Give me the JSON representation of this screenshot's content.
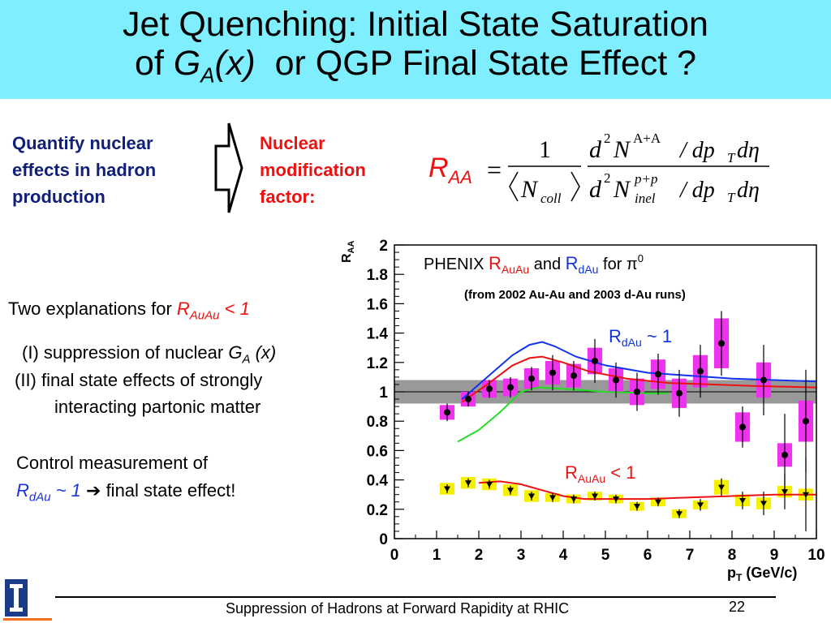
{
  "title": {
    "line1": "Jet Quenching: Initial State Saturation",
    "line2_pre": "of ",
    "line2_G": "G",
    "line2_sub": "A",
    "line2_x": "(x)",
    "line2_post": "or QGP Final State Effect ?"
  },
  "left": {
    "quantify": [
      "Quantify  nuclear",
      "effects in hadron",
      "production"
    ],
    "nmf": [
      "Nuclear",
      "modification",
      "factor:"
    ]
  },
  "formula": {
    "lhs": "R",
    "lhs_sub": "AA",
    "eq": "=",
    "one": "1",
    "ncoll_N": "N",
    "ncoll_sub": "coll",
    "num_d": "d",
    "num_2": "2",
    "num_N": "N",
    "num_sup": "A+A",
    "num_rest": "/ dp",
    "num_T": "T",
    "num_deta": "dη",
    "den_sup": "p+p",
    "den_sub": "inel"
  },
  "explanations": {
    "head_pre": "Two explanations for ",
    "head_R": "R",
    "head_sub": "AuAu",
    "head_post": " < 1",
    "item1_pre": "(I) suppression of nuclear ",
    "item1_G": "G",
    "item1_sub": "A",
    "item1_post": " (x)",
    "item2_l1": "(II) final state effects of strongly",
    "item2_l2": "interacting partonic matter"
  },
  "control": {
    "line1": "Control measurement of",
    "R": "R",
    "sub": "dAu",
    "post_blue": " ~ 1 ",
    "arrow": "➔",
    "post": " final state effect!"
  },
  "chart_data": {
    "type": "scatter",
    "title_pre": "PHENIX  ",
    "title_R1": "R",
    "title_R1_sub": "AuAu",
    "title_mid": "  and ",
    "title_R2": "R",
    "title_R2_sub": "dAu",
    "title_post": " for π",
    "title_sup": "0",
    "subtitle": "(from 2002 Au-Au and 2003 d-Au runs)",
    "ylabel_R": "R",
    "ylabel_sub": "AA",
    "xlabel_p": "p",
    "xlabel_sub": "T",
    "xlabel_post": " (GeV/c)",
    "xlim": [
      0,
      10
    ],
    "ylim": [
      0,
      2
    ],
    "xticks": [
      "0",
      "1",
      "2",
      "3",
      "4",
      "5",
      "6",
      "7",
      "8",
      "9",
      "10"
    ],
    "yticks": [
      "0",
      "0.2",
      "0.4",
      "0.6",
      "0.8",
      "1",
      "1.2",
      "1.4",
      "1.6",
      "1.8",
      "2"
    ],
    "reference_band": {
      "center": 1.0,
      "half_width": 0.08,
      "color": "#999999"
    },
    "annot_dAu_R": "R",
    "annot_dAu_sub": "dAu",
    "annot_dAu_post": "  ~ 1",
    "annot_AuAu_R": "R",
    "annot_AuAu_sub": "AuAu",
    "annot_AuAu_post": "  < 1",
    "series": [
      {
        "name": "dAu",
        "marker": "circle",
        "box_color": "#ee33ee",
        "points": [
          {
            "x": 1.25,
            "y": 0.86,
            "err": 0.06,
            "box": 0.05
          },
          {
            "x": 1.75,
            "y": 0.95,
            "err": 0.05,
            "box": 0.05
          },
          {
            "x": 2.25,
            "y": 1.02,
            "err": 0.06,
            "box": 0.06
          },
          {
            "x": 2.75,
            "y": 1.03,
            "err": 0.07,
            "box": 0.06
          },
          {
            "x": 3.25,
            "y": 1.09,
            "err": 0.08,
            "box": 0.07
          },
          {
            "x": 3.75,
            "y": 1.13,
            "err": 0.12,
            "box": 0.08
          },
          {
            "x": 4.25,
            "y": 1.11,
            "err": 0.1,
            "box": 0.08
          },
          {
            "x": 4.75,
            "y": 1.21,
            "err": 0.15,
            "box": 0.09
          },
          {
            "x": 5.25,
            "y": 1.08,
            "err": 0.12,
            "box": 0.08
          },
          {
            "x": 5.75,
            "y": 1.0,
            "err": 0.13,
            "box": 0.09
          },
          {
            "x": 6.25,
            "y": 1.12,
            "err": 0.14,
            "box": 0.1
          },
          {
            "x": 6.75,
            "y": 0.99,
            "err": 0.16,
            "box": 0.1
          },
          {
            "x": 7.25,
            "y": 1.14,
            "err": 0.18,
            "box": 0.11
          },
          {
            "x": 7.75,
            "y": 1.33,
            "err": 0.22,
            "box": 0.17
          },
          {
            "x": 8.25,
            "y": 0.76,
            "err": 0.14,
            "box": 0.1
          },
          {
            "x": 8.75,
            "y": 1.08,
            "err": 0.24,
            "box": 0.12
          },
          {
            "x": 9.25,
            "y": 0.57,
            "err": 0.28,
            "box": 0.08
          },
          {
            "x": 9.75,
            "y": 0.8,
            "err": 0.35,
            "box": 0.14
          }
        ]
      },
      {
        "name": "AuAu",
        "marker": "triangle",
        "box_color": "#f5f000",
        "points": [
          {
            "x": 1.25,
            "y": 0.34,
            "err": 0.03,
            "box": 0.04
          },
          {
            "x": 1.75,
            "y": 0.38,
            "err": 0.03,
            "box": 0.04
          },
          {
            "x": 2.25,
            "y": 0.37,
            "err": 0.03,
            "box": 0.04
          },
          {
            "x": 2.75,
            "y": 0.33,
            "err": 0.03,
            "box": 0.04
          },
          {
            "x": 3.25,
            "y": 0.29,
            "err": 0.03,
            "box": 0.04
          },
          {
            "x": 3.75,
            "y": 0.28,
            "err": 0.03,
            "box": 0.03
          },
          {
            "x": 4.25,
            "y": 0.27,
            "err": 0.03,
            "box": 0.03
          },
          {
            "x": 4.75,
            "y": 0.29,
            "err": 0.03,
            "box": 0.03
          },
          {
            "x": 5.25,
            "y": 0.27,
            "err": 0.03,
            "box": 0.03
          },
          {
            "x": 5.75,
            "y": 0.22,
            "err": 0.03,
            "box": 0.03
          },
          {
            "x": 6.25,
            "y": 0.25,
            "err": 0.03,
            "box": 0.03
          },
          {
            "x": 6.75,
            "y": 0.17,
            "err": 0.03,
            "box": 0.03
          },
          {
            "x": 7.25,
            "y": 0.23,
            "err": 0.04,
            "box": 0.03
          },
          {
            "x": 7.75,
            "y": 0.35,
            "err": 0.06,
            "box": 0.05
          },
          {
            "x": 8.25,
            "y": 0.26,
            "err": 0.06,
            "box": 0.04
          },
          {
            "x": 8.75,
            "y": 0.24,
            "err": 0.08,
            "box": 0.04
          },
          {
            "x": 9.25,
            "y": 0.32,
            "err": 0.12,
            "box": 0.04
          },
          {
            "x": 9.75,
            "y": 0.3,
            "err": 0.25,
            "box": 0.04
          }
        ]
      }
    ],
    "curves": [
      {
        "color": "#1133ee",
        "points": [
          [
            1.6,
            0.95
          ],
          [
            2.2,
            1.1
          ],
          [
            2.8,
            1.25
          ],
          [
            3.2,
            1.32
          ],
          [
            3.5,
            1.34
          ],
          [
            3.8,
            1.31
          ],
          [
            4.3,
            1.24
          ],
          [
            5,
            1.18
          ],
          [
            6,
            1.13
          ],
          [
            7,
            1.11
          ],
          [
            8,
            1.09
          ],
          [
            9,
            1.08
          ],
          [
            10,
            1.07
          ]
        ]
      },
      {
        "color": "#ee1111",
        "points": [
          [
            1.6,
            0.93
          ],
          [
            2.2,
            1.05
          ],
          [
            2.8,
            1.18
          ],
          [
            3.2,
            1.23
          ],
          [
            3.5,
            1.24
          ],
          [
            4,
            1.2
          ],
          [
            4.6,
            1.14
          ],
          [
            5.5,
            1.09
          ],
          [
            6.5,
            1.06
          ],
          [
            7.5,
            1.05
          ],
          [
            8.5,
            1.04
          ],
          [
            10,
            1.03
          ]
        ]
      },
      {
        "color": "#22dd22",
        "points": [
          [
            1.5,
            0.66
          ],
          [
            2,
            0.74
          ],
          [
            2.5,
            0.86
          ],
          [
            3.0,
            1.0
          ],
          [
            3.4,
            1.03
          ],
          [
            4,
            1.02
          ],
          [
            5,
            1.0
          ],
          [
            6,
            0.99
          ],
          [
            6.5,
            0.99
          ]
        ]
      },
      {
        "color": "#ee1111",
        "points": [
          [
            2.0,
            0.38
          ],
          [
            2.5,
            0.39
          ],
          [
            3,
            0.37
          ],
          [
            3.5,
            0.33
          ],
          [
            4,
            0.29
          ],
          [
            4.5,
            0.27
          ],
          [
            5,
            0.27
          ],
          [
            6,
            0.27
          ],
          [
            7,
            0.28
          ],
          [
            8,
            0.29
          ],
          [
            9,
            0.3
          ],
          [
            10,
            0.3
          ]
        ]
      }
    ]
  },
  "footer": {
    "text": "Suppression of Hadrons at Forward Rapidity at RHIC",
    "page": "22"
  }
}
